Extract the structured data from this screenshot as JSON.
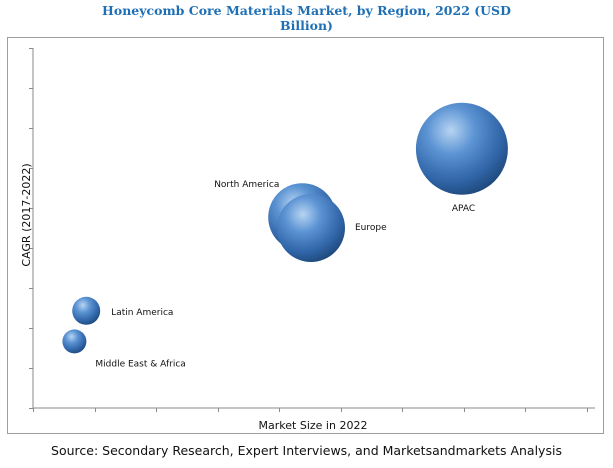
{
  "title_line1": "Honeycomb Core Materials Market, by Region, 2022 (USD",
  "title_line2": "Billion)",
  "source": "Source: Secondary Research, Expert Interviews, and Marketsandmarkets Analysis",
  "colors": {
    "title": "#1f6fb5",
    "bubble": "#3a73b8",
    "bubble_dark": "#1d4677",
    "bubble_light": "#b7d4f2"
  },
  "chart_data": {
    "type": "scatter",
    "variant": "bubble",
    "title": "Honeycomb Core Materials Market, by Region, 2022 (USD Billion)",
    "xlabel": "Market Size in 2022",
    "ylabel": "CAGR (2017-2022)",
    "grid": false,
    "legend": "none",
    "points": [
      {
        "label": "North America",
        "x": 4.55,
        "y": 5.3,
        "size": 34
      },
      {
        "label": "Europe",
        "x": 4.7,
        "y": 5.0,
        "size": 34
      },
      {
        "label": "APAC",
        "x": 7.25,
        "y": 7.2,
        "size": 46
      },
      {
        "label": "Latin America",
        "x": 0.9,
        "y": 2.7,
        "size": 14
      },
      {
        "label": "Middle East & Africa",
        "x": 0.7,
        "y": 1.85,
        "size": 12
      }
    ],
    "xlim": [
      0,
      9.5
    ],
    "ylim": [
      0,
      10
    ]
  }
}
